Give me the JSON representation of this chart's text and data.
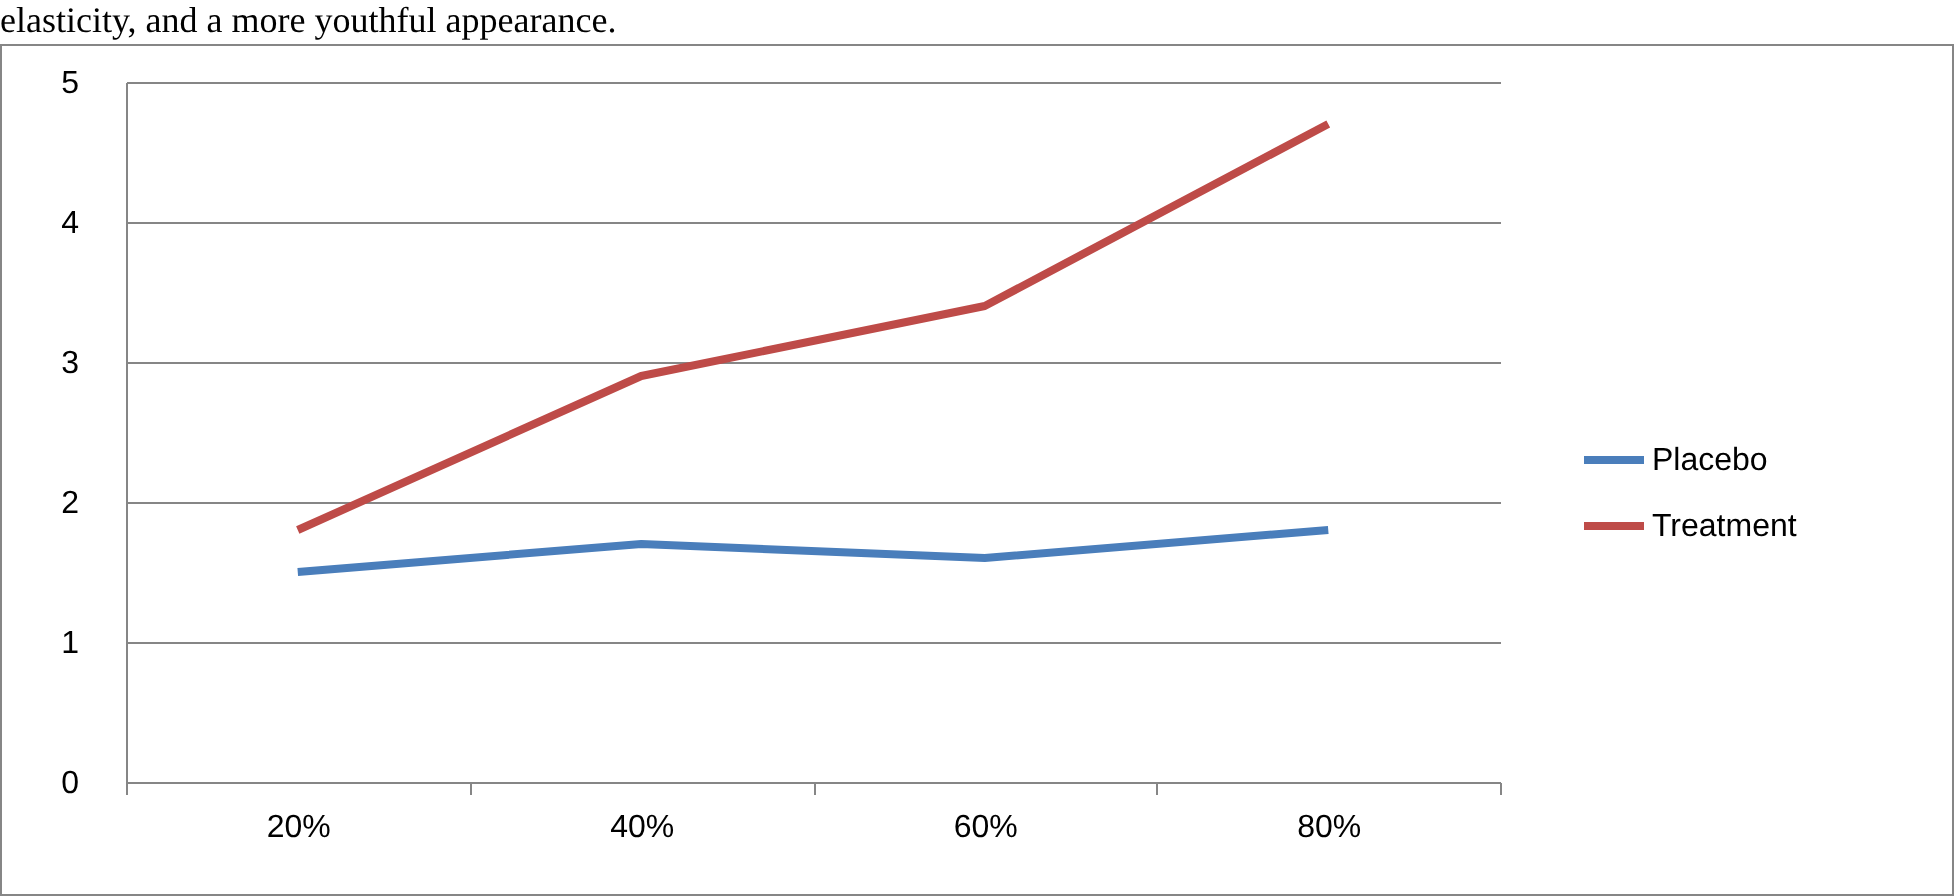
{
  "chart_data": {
    "type": "line",
    "annotations": [
      "elasticity, and a more youthful appearance."
    ],
    "categories": [
      "20%",
      "40%",
      "60%",
      "80%"
    ],
    "series": [
      {
        "name": "Placebo",
        "color": "#4a7ebb",
        "values": [
          1.5,
          1.7,
          1.6,
          1.8
        ]
      },
      {
        "name": "Treatment",
        "color": "#be4b48",
        "values": [
          1.8,
          2.9,
          3.4,
          4.7
        ]
      }
    ],
    "ylim": [
      0,
      5
    ],
    "yticks": [
      0,
      1,
      2,
      3,
      4,
      5
    ],
    "grid": "y",
    "legend": "right",
    "marker": "none",
    "line_style": "solid"
  }
}
